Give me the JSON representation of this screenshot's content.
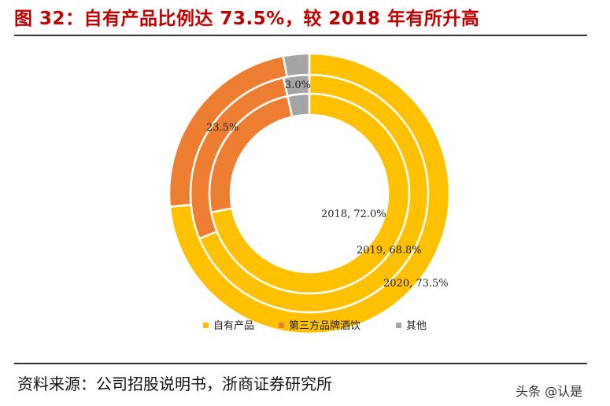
{
  "figure": {
    "title": "图 32：自有产品比例达 73.5%，较 2018 年有所升高",
    "source": "资料来源：公司招股说明书，浙商证券研究所",
    "watermark": "头条 @认是"
  },
  "chart_data": {
    "type": "donut",
    "title": "",
    "categories": [
      "自有产品",
      "第三方品牌酒饮",
      "其他"
    ],
    "colors": [
      "#FFC000",
      "#ED7D31",
      "#A5A5A5"
    ],
    "legend_position": "bottom",
    "rings": [
      {
        "year": "2018",
        "values": [
          72.0,
          24.5,
          3.5
        ],
        "label": "2018, 72.0%"
      },
      {
        "year": "2019",
        "values": [
          68.8,
          27.7,
          3.5
        ],
        "label": "2019, 68.8%"
      },
      {
        "year": "2020",
        "values": [
          73.5,
          23.5,
          3.0
        ],
        "label": "2020, 73.5%"
      }
    ],
    "outer_labels": [
      "23.5%",
      "3.0%"
    ]
  }
}
